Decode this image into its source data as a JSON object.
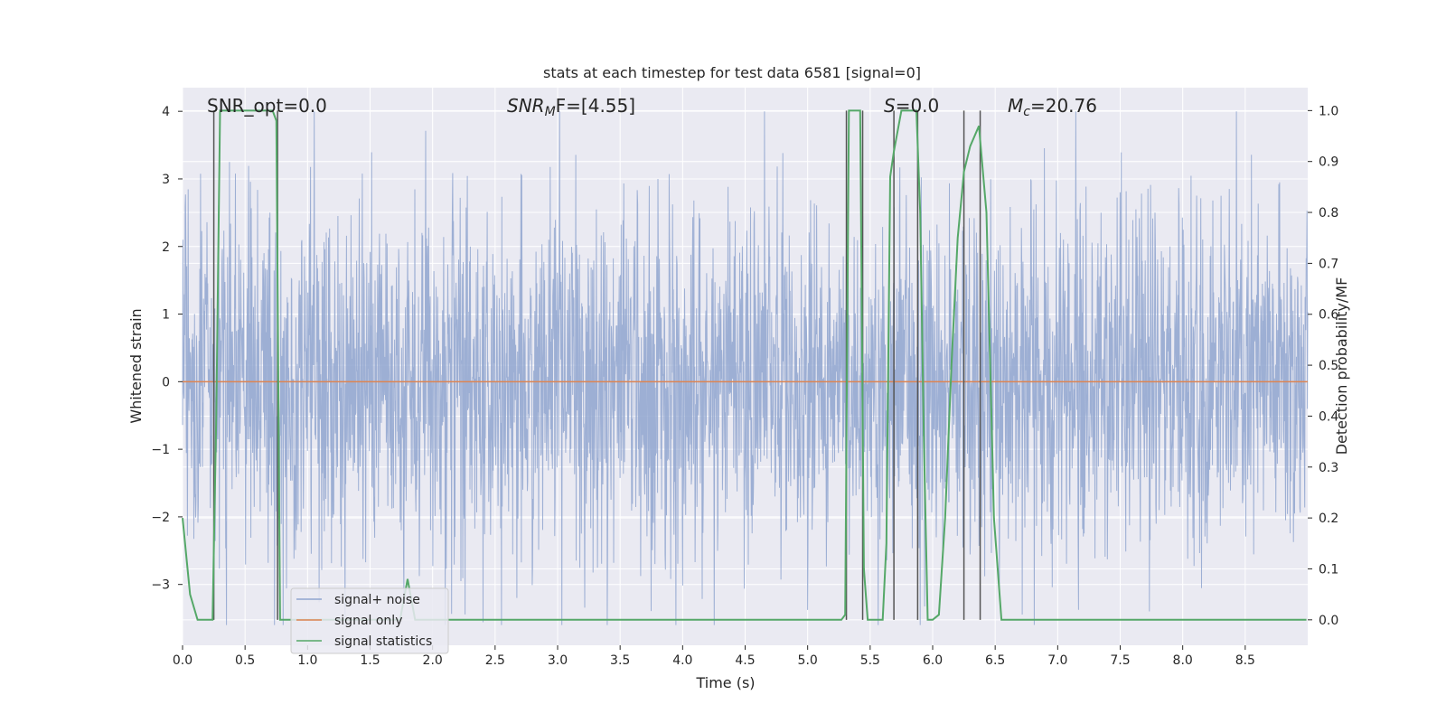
{
  "chart_data": {
    "type": "line",
    "title": "stats at each timestep for test data 6581 [signal=0]",
    "xlabel": "Time (s)",
    "ylabel": "Whitened strain",
    "ylabel_right": "Detection probability/MF",
    "xlim": [
      0.0,
      9.0
    ],
    "ylim": [
      -3.9,
      4.35
    ],
    "ylim_right": [
      -0.05,
      1.045
    ],
    "x_ticks": [
      0.0,
      0.5,
      1.0,
      1.5,
      2.0,
      2.5,
      3.0,
      3.5,
      4.0,
      4.5,
      5.0,
      5.5,
      6.0,
      6.5,
      7.0,
      7.5,
      8.0,
      8.5
    ],
    "x_tick_labels": [
      "0.0",
      "0.5",
      "1.0",
      "1.5",
      "2.0",
      "2.5",
      "3.0",
      "3.5",
      "4.0",
      "4.5",
      "5.0",
      "5.5",
      "6.0",
      "6.5",
      "7.0",
      "7.5",
      "8.0",
      "8.5"
    ],
    "y_ticks": [
      4,
      3,
      2,
      1,
      0,
      -1,
      -2,
      -3
    ],
    "y_tick_labels": [
      "4",
      "3",
      "2",
      "1",
      "0",
      "−1",
      "−2",
      "−3"
    ],
    "y_ticks_right": [
      1.0,
      0.9,
      0.8,
      0.7,
      0.6,
      0.5,
      0.4,
      0.3,
      0.2,
      0.1,
      0.0
    ],
    "y_tick_labels_right": [
      "1.0",
      "0.9",
      "0.8",
      "0.7",
      "0.6",
      "0.5",
      "0.4",
      "0.3",
      "0.2",
      "0.1",
      "0.0"
    ],
    "annotations": {
      "snr_opt": "SNR_opt=0.0",
      "snr_mf_sym": "SNR",
      "snr_mf_sub": "M",
      "snr_mf_rest": "F=[4.55]",
      "s_sym": "S",
      "s_rest": "=0.0",
      "mc_sym": "M",
      "mc_sub": "c",
      "mc_rest": "=20.76"
    },
    "legend": {
      "position": "lower-left",
      "entries": [
        {
          "label": "signal+ noise",
          "color": "#8fa5cf"
        },
        {
          "label": "signal only",
          "color": "#dd8452"
        },
        {
          "label": "signal statistics",
          "color": "#55a868"
        }
      ]
    },
    "series": [
      {
        "name": "signal+ noise",
        "axis": "left",
        "style": "dense noise",
        "approx_amplitude": 1.3,
        "approx_range": [
          -3.6,
          4.0
        ],
        "color": "#8fa5cf"
      },
      {
        "name": "signal only",
        "axis": "left",
        "x": [
          0.0,
          9.0
        ],
        "y": [
          0.0,
          0.0
        ],
        "color": "#dd8452"
      },
      {
        "name": "signal statistics",
        "axis": "right",
        "color": "#55a868",
        "x": [
          0.0,
          0.06,
          0.12,
          0.18,
          0.24,
          0.27,
          0.3,
          0.33,
          0.72,
          0.75,
          0.78,
          0.81,
          1.74,
          1.8,
          1.86,
          5.27,
          5.3,
          5.33,
          5.36,
          5.42,
          5.45,
          5.48,
          5.51,
          5.6,
          5.63,
          5.66,
          5.69,
          5.75,
          5.87,
          5.9,
          5.93,
          5.96,
          6.0,
          6.05,
          6.1,
          6.15,
          6.2,
          6.25,
          6.3,
          6.37,
          6.43,
          6.49,
          6.55,
          8.99
        ],
        "y": [
          0.2,
          0.05,
          0.0,
          0.0,
          0.0,
          0.4,
          1.0,
          1.0,
          1.0,
          0.98,
          0.0,
          0.0,
          0.0,
          0.08,
          0.0,
          0.0,
          0.01,
          1.0,
          1.0,
          1.0,
          0.1,
          0.0,
          0.0,
          0.0,
          0.15,
          0.87,
          0.92,
          1.0,
          1.0,
          0.8,
          0.35,
          0.0,
          0.0,
          0.01,
          0.2,
          0.5,
          0.75,
          0.88,
          0.93,
          0.97,
          0.8,
          0.2,
          0.0,
          0.0
        ]
      }
    ],
    "vertical_lines_x": [
      0.25,
      0.76,
      5.31,
      5.44,
      5.69,
      5.88,
      6.25,
      6.38
    ],
    "vertical_lines_color": "#555555"
  }
}
